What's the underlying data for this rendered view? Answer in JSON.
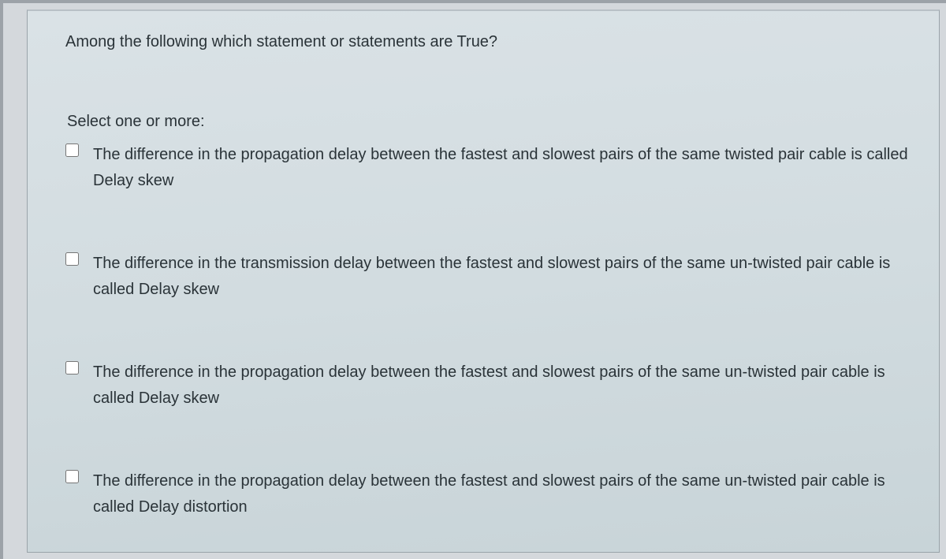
{
  "question": {
    "prompt": "Among the following which statement or statements are True?",
    "select_instruction": "Select one or more:",
    "options": [
      {
        "text": "The difference in the propagation delay between the fastest and slowest pairs of the same twisted pair cable is called Delay skew",
        "checked": false
      },
      {
        "text": "The difference in the transmission delay between the fastest and slowest pairs of the same un-twisted pair cable is called Delay skew",
        "checked": false
      },
      {
        "text": "The difference in the propagation delay between the fastest and slowest pairs of the same un-twisted pair cable is called Delay skew",
        "checked": false
      },
      {
        "text": "The difference in the propagation delay between the fastest and slowest pairs of the same un-twisted pair cable is called Delay distortion",
        "checked": false
      }
    ]
  },
  "colors": {
    "panel_bg": "#d6dfe3",
    "text": "#2a3338",
    "border": "#9aa4aa",
    "outer_bg": "#8a9095"
  }
}
